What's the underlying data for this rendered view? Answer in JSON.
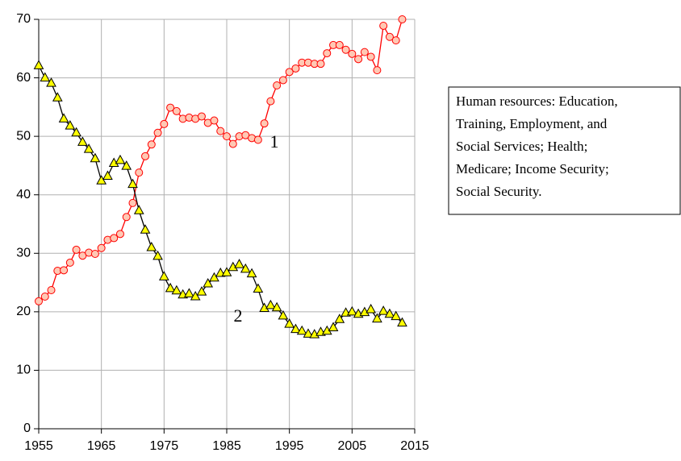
{
  "chart_data": {
    "type": "line",
    "x": [
      1955,
      1956,
      1957,
      1958,
      1959,
      1960,
      1961,
      1962,
      1963,
      1964,
      1965,
      1966,
      1967,
      1968,
      1969,
      1970,
      1971,
      1972,
      1973,
      1974,
      1975,
      1976,
      1977,
      1978,
      1979,
      1980,
      1981,
      1982,
      1983,
      1984,
      1985,
      1986,
      1987,
      1988,
      1989,
      1990,
      1991,
      1992,
      1993,
      1994,
      1995,
      1996,
      1997,
      1998,
      1999,
      2000,
      2001,
      2002,
      2003,
      2004,
      2005,
      2006,
      2007,
      2008,
      2009,
      2010,
      2011,
      2012,
      2013
    ],
    "series": [
      {
        "name": "1",
        "color": "#ff0000",
        "marker": "circle",
        "marker_fill": "#ffc8b4",
        "values": [
          21.8,
          22.6,
          23.7,
          27.0,
          27.1,
          28.4,
          30.6,
          29.6,
          30.1,
          29.9,
          30.9,
          32.3,
          32.6,
          33.3,
          36.2,
          38.6,
          43.8,
          46.6,
          48.6,
          50.6,
          52.1,
          54.9,
          54.3,
          53.0,
          53.2,
          53.0,
          53.4,
          52.3,
          52.7,
          50.9,
          50.0,
          48.7,
          50.0,
          50.2,
          49.7,
          49.4,
          52.2,
          56.0,
          58.7,
          59.6,
          61.0,
          61.6,
          62.6,
          62.6,
          62.4,
          62.4,
          64.2,
          65.6,
          65.6,
          64.8,
          64.1,
          63.2,
          64.4,
          63.6,
          61.3,
          68.9,
          67.0,
          66.4,
          70.0
        ]
      },
      {
        "name": "2",
        "color": "#000000",
        "marker": "triangle",
        "marker_fill": "#ffff00",
        "values": [
          62.1,
          60.0,
          59.1,
          56.6,
          53.0,
          51.8,
          50.6,
          49.0,
          47.8,
          46.2,
          42.4,
          43.2,
          45.4,
          45.9,
          44.9,
          41.8,
          37.3,
          34.0,
          31.0,
          29.5,
          26.0,
          24.0,
          23.6,
          22.9,
          23.1,
          22.6,
          23.4,
          24.8,
          25.8,
          26.6,
          26.7,
          27.6,
          28.1,
          27.3,
          26.5,
          23.9,
          20.6,
          21.1,
          20.7,
          19.3,
          17.9,
          17.0,
          16.7,
          16.2,
          16.1,
          16.5,
          16.7,
          17.3,
          18.7,
          19.8,
          20.0,
          19.6,
          19.9,
          20.4,
          18.8,
          20.1,
          19.6,
          19.2,
          18.1
        ]
      }
    ],
    "xlim": [
      1955,
      2015
    ],
    "xticks": [
      1955,
      1965,
      1975,
      1985,
      1995,
      2005,
      2015
    ],
    "ylim": [
      0,
      70
    ],
    "yticks": [
      0,
      10,
      20,
      30,
      40,
      50,
      60,
      70
    ],
    "grid": true,
    "annotation_lines": [
      "Human resources: Education,",
      "Training, Employment, and",
      "Social Services; Health;",
      "Medicare; Income Security;",
      "Social Security."
    ]
  }
}
